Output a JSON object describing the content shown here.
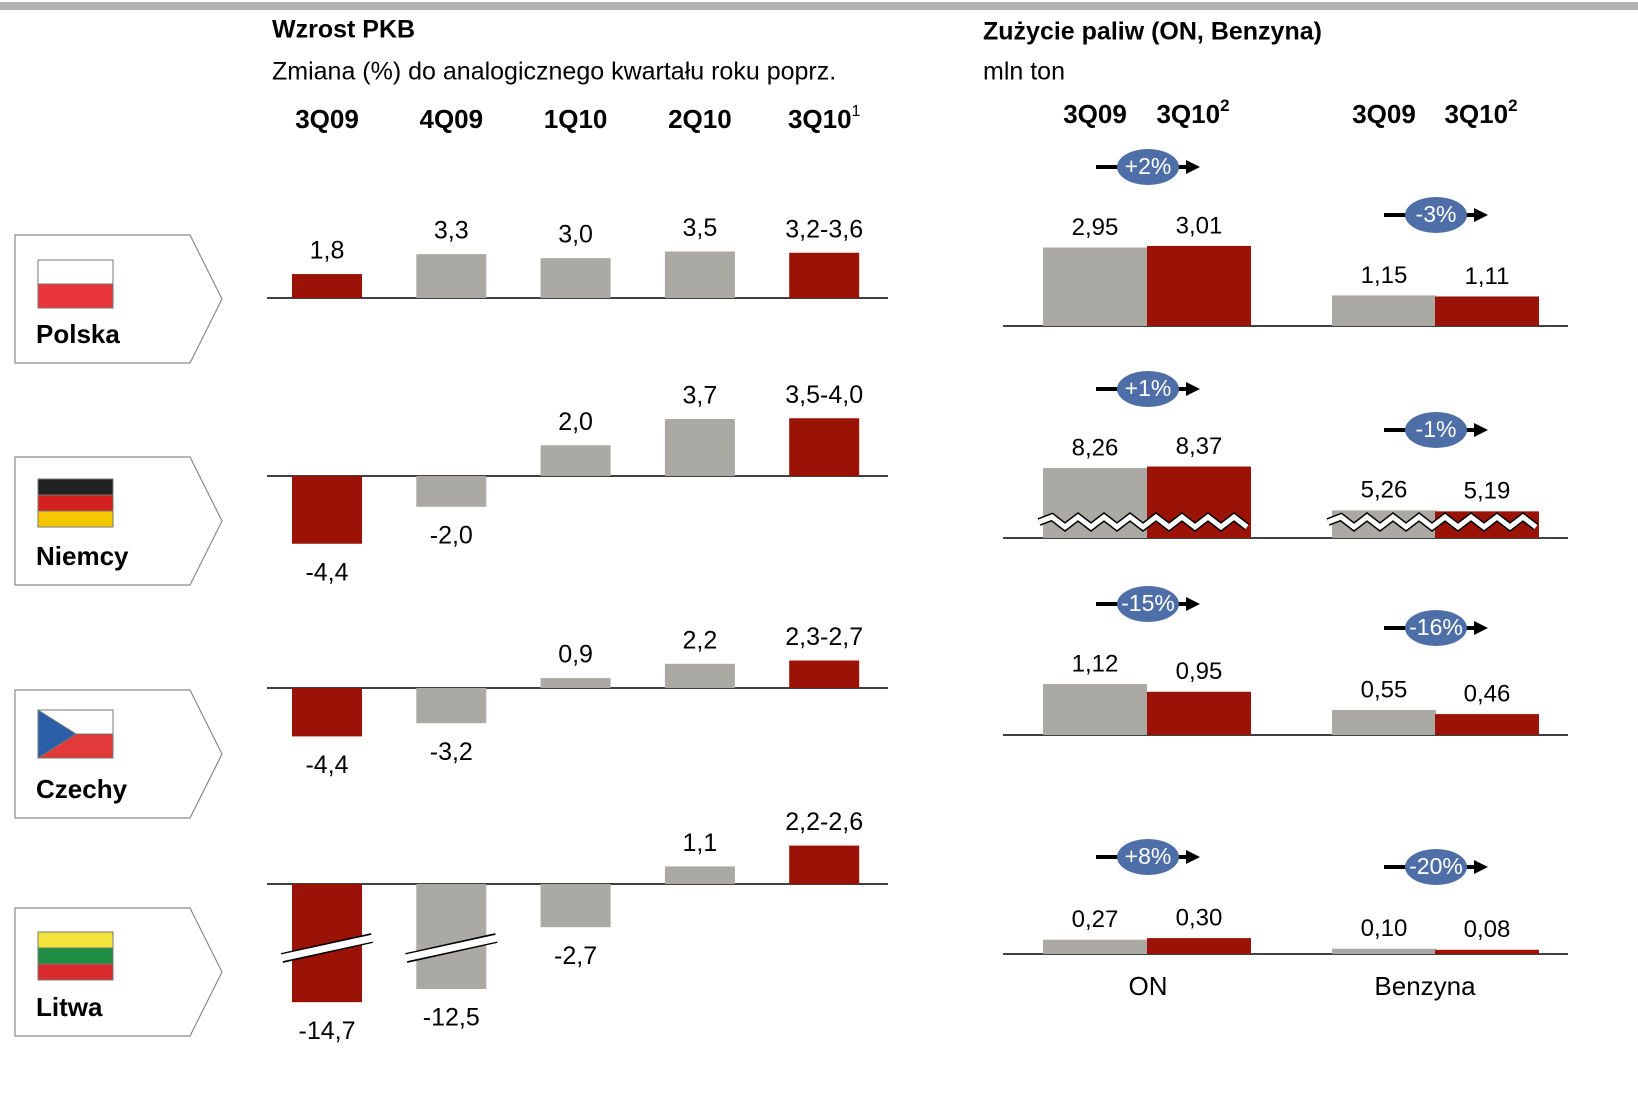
{
  "gdp": {
    "title": "Wzrost PKB",
    "subtitle": "Zmiana (%) do analogicznego kwartału roku poprz.",
    "periods": [
      "3Q09",
      "4Q09",
      "1Q10",
      "2Q10",
      "3Q10"
    ],
    "last_period_note": "1",
    "highlight": [
      0,
      4
    ],
    "countries": [
      {
        "name": "Polska",
        "values": [
          1.8,
          3.3,
          3.0,
          3.5,
          3.4
        ],
        "value_labels": [
          "1,8",
          "3,3",
          "3,0",
          "3,5",
          "3,2-3,6"
        ]
      },
      {
        "name": "Niemcy",
        "values": [
          -4.4,
          -2.0,
          2.0,
          3.7,
          3.75
        ],
        "value_labels": [
          "-4,4",
          "-2,0",
          "2,0",
          "3,7",
          "3,5-4,0"
        ]
      },
      {
        "name": "Czechy",
        "values": [
          -4.4,
          -3.2,
          0.9,
          2.2,
          2.5
        ],
        "value_labels": [
          "-4,4",
          "-3,2",
          "0,9",
          "2,2",
          "2,3-2,7"
        ]
      },
      {
        "name": "Litwa",
        "values": [
          -14.7,
          -12.5,
          -2.7,
          1.1,
          2.4
        ],
        "value_labels": [
          "-14,7",
          "-12,5",
          "-2,7",
          "1,1",
          "2,2-2,6"
        ],
        "axis_break": true
      }
    ]
  },
  "fuel": {
    "title": "Zużycie paliw (ON, Benzyna)",
    "unit": "mln ton",
    "periods": [
      "3Q09",
      "3Q10"
    ],
    "period_note": "2",
    "products": [
      "ON",
      "Benzyna"
    ],
    "colors": [
      "#aaa9a4",
      "#9b1306"
    ],
    "countries": [
      {
        "values": [
          [
            2.95,
            3.01
          ],
          [
            1.15,
            1.11
          ]
        ],
        "value_labels": [
          [
            "2,95",
            "3,01"
          ],
          [
            "1,15",
            "1,11"
          ]
        ],
        "changes": [
          "+2%",
          "-3%"
        ]
      },
      {
        "values": [
          [
            8.26,
            8.37
          ],
          [
            5.26,
            5.19
          ]
        ],
        "value_labels": [
          [
            "8,26",
            "8,37"
          ],
          [
            "5,26",
            "5,19"
          ]
        ],
        "changes": [
          "+1%",
          "-1%"
        ],
        "axis_break": true
      },
      {
        "values": [
          [
            1.12,
            0.95
          ],
          [
            0.55,
            0.46
          ]
        ],
        "value_labels": [
          [
            "1,12",
            "0,95"
          ],
          [
            "0,55",
            "0,46"
          ]
        ],
        "changes": [
          "-15%",
          "-16%"
        ]
      },
      {
        "values": [
          [
            0.27,
            0.3
          ],
          [
            0.1,
            0.08
          ]
        ],
        "value_labels": [
          [
            "0,27",
            "0,30"
          ],
          [
            "0,10",
            "0,08"
          ]
        ],
        "changes": [
          "+8%",
          "-20%"
        ]
      }
    ]
  }
}
